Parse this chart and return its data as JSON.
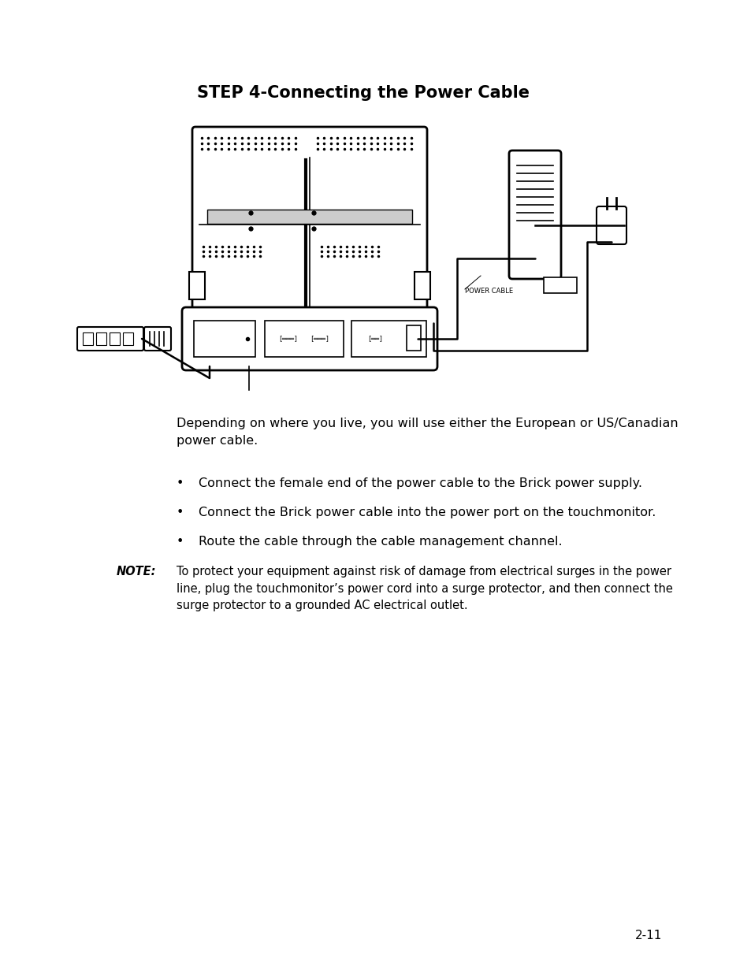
{
  "title": "STEP 4-Connecting the Power Cable",
  "title_fontsize": 15,
  "title_fontweight": "bold",
  "body_text_1": "Depending on where you live, you will use either the European or US/Canadian\npower cable.",
  "bullet_1": "Connect the female end of the power cable to the Brick power supply.",
  "bullet_2": "Connect the Brick power cable into the power port on the touchmonitor.",
  "bullet_3": "Route the cable through the cable management channel.",
  "note_label": "NOTE:",
  "note_text": "To protect your equipment against risk of damage from electrical surges in the power\nline, plug the touchmonitor’s power cord into a surge protector, and then connect the\nsurge protector to a grounded AC electrical outlet.",
  "page_number": "2-11",
  "background_color": "#ffffff",
  "text_color": "#000000",
  "body_fontsize": 11.5,
  "note_fontsize": 10.5,
  "page_num_fontsize": 11,
  "fig_width": 9.54,
  "fig_height": 12.35
}
